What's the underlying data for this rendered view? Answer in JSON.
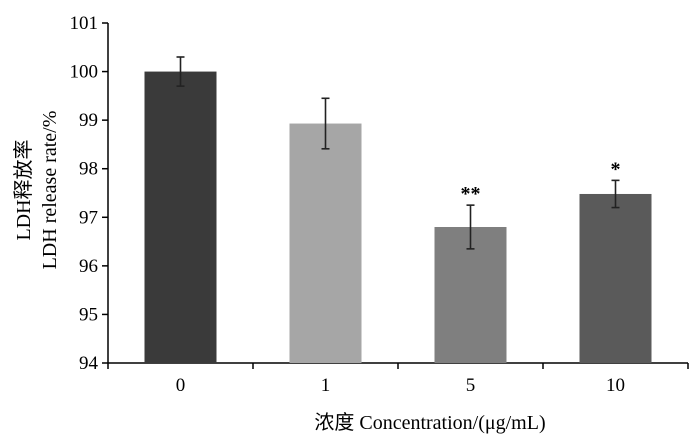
{
  "chart_data": {
    "type": "bar",
    "title": "",
    "xlabel": "浓度 Concentration/(μg/mL)",
    "ylabel_line1": "LDH释放率",
    "ylabel_line2": "LDH release rate/%",
    "ylim": [
      94,
      101
    ],
    "yticks": [
      "94",
      "95",
      "96",
      "97",
      "98",
      "99",
      "100",
      "101"
    ],
    "categories": [
      "0",
      "1",
      "5",
      "10"
    ],
    "values": [
      100.0,
      98.93,
      96.8,
      97.48
    ],
    "errors": [
      0.3,
      0.52,
      0.45,
      0.28
    ],
    "significance": [
      "",
      "",
      "**",
      "*"
    ],
    "bar_colors": [
      "#3a3a3a",
      "#a6a6a6",
      "#7f7f7f",
      "#5a5a5a"
    ],
    "grid": false
  }
}
